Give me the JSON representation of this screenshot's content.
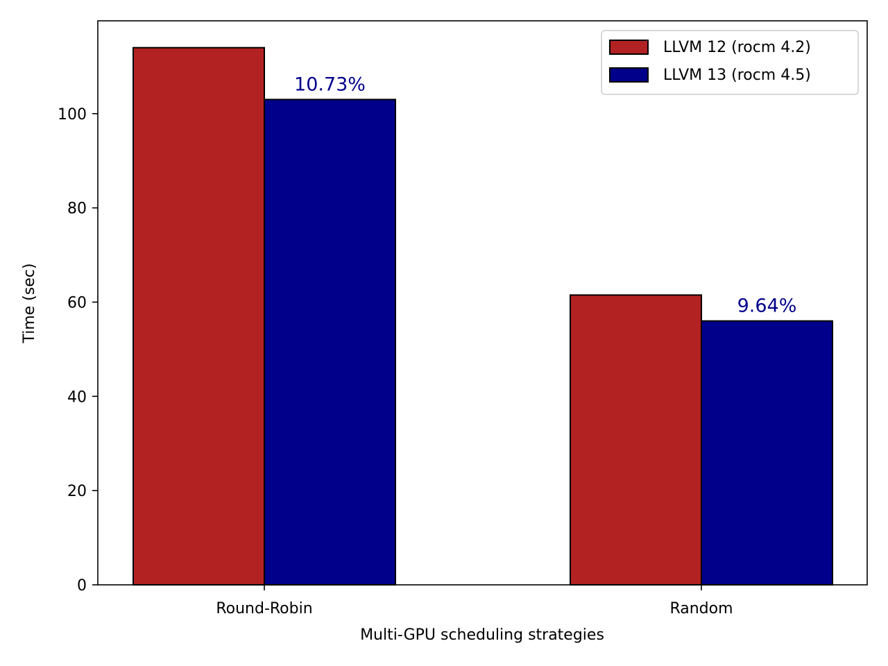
{
  "chart_data": {
    "type": "bar",
    "categories": [
      "Round-Robin",
      "Random"
    ],
    "series": [
      {
        "name": "LLVM 12 (rocm 4.2)",
        "values": [
          114,
          61.5
        ],
        "color": "#b22222"
      },
      {
        "name": "LLVM 13 (rocm 4.5)",
        "values": [
          103,
          56
        ],
        "color": "#00008b"
      }
    ],
    "annotations": [
      {
        "category": "Round-Robin",
        "series": 1,
        "text": "10.73%"
      },
      {
        "category": "Random",
        "series": 1,
        "text": "9.64%"
      }
    ],
    "annotation_color": "#00008b",
    "xlabel": "Multi-GPU scheduling strategies",
    "ylabel": "Time (sec)",
    "ylim": [
      0,
      119.7
    ],
    "yticks": [
      0,
      20,
      40,
      60,
      80,
      100
    ],
    "grid": false,
    "legend_position": "top-right"
  }
}
